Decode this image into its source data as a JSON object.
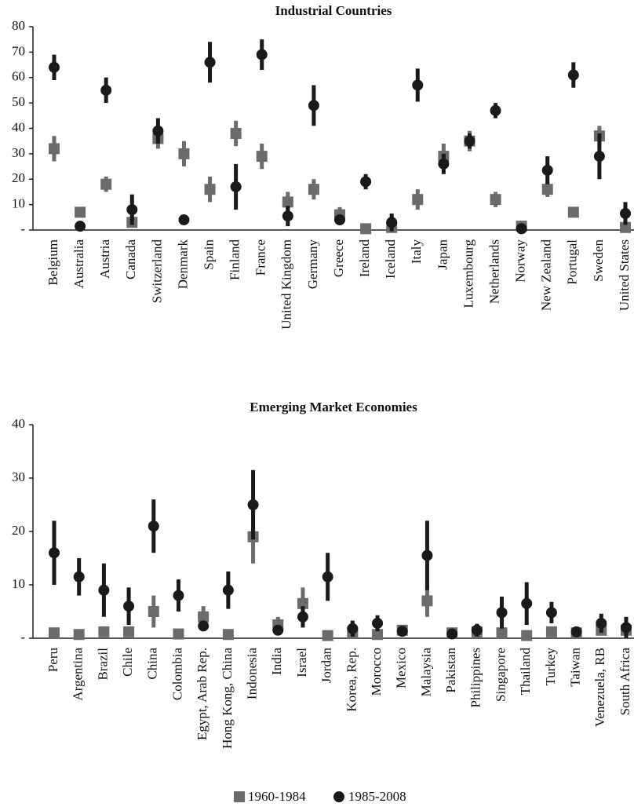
{
  "chart_data": [
    {
      "type": "errorbar",
      "title": "Industrial Countries",
      "categories": [
        "Belgium",
        "Australia",
        "Austria",
        "Canada",
        "Switzerland",
        "Denmark",
        "Spain",
        "Finland",
        "France",
        "United Kingdom",
        "Germany",
        "Greece",
        "Ireland",
        "Iceland",
        "Italy",
        "Japan",
        "Luxembourg",
        "Netherlands",
        "Norway",
        "New Zealand",
        "Portugal",
        "Sweden",
        "United States"
      ],
      "series": [
        {
          "name": "1960-1984",
          "color": "#6b6b6b",
          "marker": "square",
          "values": [
            32,
            7,
            18,
            3,
            36,
            30,
            16,
            38,
            29,
            11,
            16,
            6,
            0.5,
            1,
            12,
            29,
            35,
            12,
            1.5,
            16,
            7,
            37,
            1
          ],
          "errors": [
            5,
            2,
            3,
            1,
            4,
            5,
            5,
            5,
            5,
            4,
            4,
            3,
            0.5,
            1,
            4,
            5,
            4,
            3,
            1,
            3,
            2,
            4,
            1
          ]
        },
        {
          "name": "1985-2008",
          "color": "#1a1a1a",
          "marker": "circle",
          "values": [
            64,
            1.5,
            55,
            8,
            39,
            4,
            66,
            17,
            69,
            5.5,
            49,
            4,
            19,
            3,
            57,
            26,
            35,
            47,
            0.5,
            23.5,
            61,
            29,
            6.5
          ],
          "errors": [
            5,
            0.5,
            5,
            6,
            5,
            2,
            8,
            9,
            6,
            4,
            8,
            1,
            3,
            3.5,
            6.5,
            4,
            3,
            3,
            0.5,
            5.5,
            5,
            9,
            4.5
          ]
        }
      ],
      "ylim": [
        0,
        80
      ],
      "yticks": [
        {
          "value": 0,
          "label": "-"
        },
        10,
        20,
        30,
        40,
        50,
        60,
        70,
        80
      ]
    },
    {
      "type": "errorbar",
      "title": "Emerging Market Economies",
      "categories": [
        "Peru",
        "Argentina",
        "Brazil",
        "Chile",
        "China",
        "Colombia",
        "Egypt, Arab Rep.",
        "Hong Kong, China",
        "Indonesia",
        "India",
        "Israel",
        "Jordan",
        "Korea, Rep.",
        "Morocco",
        "Mexico",
        "Malaysia",
        "Pakistan",
        "Philippines",
        "Singapore",
        "Thailand",
        "Turkey",
        "Taiwan",
        "Venezuela, RB",
        "South Africa"
      ],
      "series": [
        {
          "name": "1960-1984",
          "color": "#6b6b6b",
          "marker": "square",
          "values": [
            1,
            0.7,
            1.2,
            1.2,
            5,
            0.8,
            4,
            0.7,
            19,
            2.5,
            6.5,
            0.5,
            1,
            0.7,
            1.5,
            7,
            1,
            1.2,
            1,
            0.5,
            1.2,
            1,
            1.5,
            1.5
          ],
          "errors": [
            0.5,
            0.3,
            0.5,
            0.5,
            3,
            0.3,
            2,
            0.3,
            5,
            1.5,
            3,
            0.3,
            1,
            0.4,
            0.8,
            3,
            0.5,
            0.6,
            0.5,
            0.3,
            0.5,
            0.5,
            0.8,
            0.8
          ]
        },
        {
          "name": "1985-2008",
          "color": "#1a1a1a",
          "marker": "circle",
          "values": [
            16,
            11.5,
            9,
            6,
            21,
            8,
            2.3,
            9,
            25,
            1.5,
            4,
            11.5,
            1.8,
            2.8,
            1.3,
            15.5,
            0.8,
            1.5,
            4.8,
            6.5,
            4.8,
            1.2,
            2.8,
            2
          ],
          "errors": [
            6,
            3.5,
            5,
            3.5,
            5,
            3,
            1,
            3.5,
            6.5,
            0.5,
            2,
            4.5,
            1.5,
            1.5,
            0.8,
            6.5,
            0.5,
            1.2,
            3,
            4,
            2,
            1,
            1.8,
            2
          ]
        }
      ],
      "ylim": [
        0,
        40
      ],
      "yticks": [
        {
          "value": 0,
          "label": "-"
        },
        10,
        20,
        30,
        40
      ]
    }
  ]
}
